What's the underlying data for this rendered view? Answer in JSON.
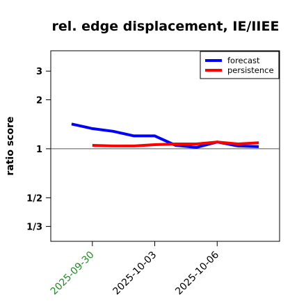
{
  "chart_data": {
    "type": "line",
    "title": "rel. edge displacement, IE/IIEE",
    "ylabel": "ratio score",
    "xlabel": "",
    "y_scale": "log",
    "ylim": [
      0.27,
      4.0
    ],
    "xlim": [
      "2025-09-28",
      "2025-10-09"
    ],
    "y_ticks": [
      {
        "value": 3,
        "label": "3"
      },
      {
        "value": 2,
        "label": "2"
      },
      {
        "value": 1,
        "label": "1"
      },
      {
        "value": 0.5,
        "label": "1/2"
      },
      {
        "value": 0.3333,
        "label": "1/3"
      }
    ],
    "x_ticks": [
      {
        "date": "2025-09-30",
        "label": "2025-09-30",
        "color": "#228B22"
      },
      {
        "date": "2025-10-03",
        "label": "2025-10-03",
        "color": "#000000"
      },
      {
        "date": "2025-10-06",
        "label": "2025-10-06",
        "color": "#000000"
      }
    ],
    "reference_line": {
      "y": 1,
      "color": "#555555"
    },
    "legend_position": "top-right",
    "grid": false,
    "series": [
      {
        "name": "forecast",
        "color": "#0000ff",
        "points": [
          {
            "x": "2025-09-29",
            "y": 1.42
          },
          {
            "x": "2025-09-30",
            "y": 1.33
          },
          {
            "x": "2025-10-01",
            "y": 1.28
          },
          {
            "x": "2025-10-02",
            "y": 1.2
          },
          {
            "x": "2025-10-03",
            "y": 1.2
          },
          {
            "x": "2025-10-04",
            "y": 1.05
          },
          {
            "x": "2025-10-05",
            "y": 1.02
          },
          {
            "x": "2025-10-06",
            "y": 1.1
          },
          {
            "x": "2025-10-07",
            "y": 1.04
          },
          {
            "x": "2025-10-08",
            "y": 1.03
          }
        ]
      },
      {
        "name": "persistence",
        "color": "#ff0000",
        "points": [
          {
            "x": "2025-09-30",
            "y": 1.05
          },
          {
            "x": "2025-10-01",
            "y": 1.04
          },
          {
            "x": "2025-10-02",
            "y": 1.04
          },
          {
            "x": "2025-10-03",
            "y": 1.06
          },
          {
            "x": "2025-10-04",
            "y": 1.07
          },
          {
            "x": "2025-10-05",
            "y": 1.07
          },
          {
            "x": "2025-10-06",
            "y": 1.1
          },
          {
            "x": "2025-10-07",
            "y": 1.07
          },
          {
            "x": "2025-10-08",
            "y": 1.09
          }
        ]
      }
    ]
  }
}
